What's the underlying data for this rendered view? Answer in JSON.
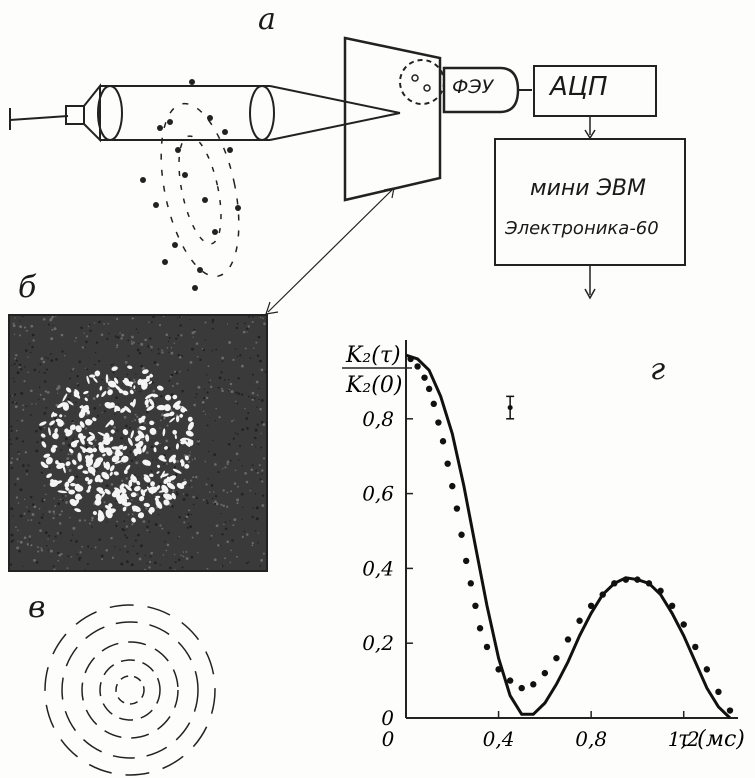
{
  "panels": {
    "a": "а",
    "b": "б",
    "v": "в",
    "g": "г"
  },
  "setup": {
    "pmt": "ФЭУ",
    "adc": "АЦП",
    "computer_line1": "мини ЭВМ",
    "computer_line2": "Электроника-60"
  },
  "chart_data": {
    "type": "line",
    "title": "",
    "ylabel_numerator": "K₂(τ)",
    "ylabel_denominator": "K₂(0)",
    "xlabel": "τ (мс)",
    "xlim": [
      0,
      1.4
    ],
    "ylim": [
      0,
      1.0
    ],
    "x_ticks": [
      "0",
      "0,4",
      "0,8",
      "1,2"
    ],
    "y_ticks": [
      "0",
      "0,2",
      "0,4",
      "0,6",
      "0,8"
    ],
    "y_tick_values": [
      0,
      0.2,
      0.4,
      0.6,
      0.8
    ],
    "x_tick_values": [
      0,
      0.4,
      0.8,
      1.2
    ],
    "series": [
      {
        "kind": "theory",
        "x": [
          0,
          0.05,
          0.1,
          0.15,
          0.2,
          0.25,
          0.3,
          0.35,
          0.4,
          0.45,
          0.5,
          0.55,
          0.6,
          0.65,
          0.7,
          0.75,
          0.8,
          0.85,
          0.9,
          0.95,
          1.0,
          1.05,
          1.1,
          1.15,
          1.2,
          1.25,
          1.3,
          1.35,
          1.4
        ],
        "values": [
          0.97,
          0.96,
          0.93,
          0.86,
          0.76,
          0.62,
          0.46,
          0.3,
          0.16,
          0.06,
          0.01,
          0.01,
          0.04,
          0.09,
          0.15,
          0.22,
          0.28,
          0.33,
          0.36,
          0.375,
          0.37,
          0.36,
          0.33,
          0.28,
          0.22,
          0.15,
          0.08,
          0.03,
          0.0
        ]
      },
      {
        "kind": "experiment",
        "x": [
          0.02,
          0.05,
          0.08,
          0.1,
          0.12,
          0.14,
          0.16,
          0.18,
          0.2,
          0.22,
          0.24,
          0.26,
          0.28,
          0.3,
          0.32,
          0.35,
          0.4,
          0.45,
          0.5,
          0.55,
          0.6,
          0.65,
          0.7,
          0.75,
          0.8,
          0.85,
          0.9,
          0.95,
          1.0,
          1.05,
          1.1,
          1.15,
          1.2,
          1.25,
          1.3,
          1.35,
          1.4
        ],
        "values": [
          0.96,
          0.94,
          0.91,
          0.88,
          0.84,
          0.79,
          0.74,
          0.68,
          0.62,
          0.56,
          0.49,
          0.42,
          0.36,
          0.3,
          0.24,
          0.19,
          0.13,
          0.1,
          0.08,
          0.09,
          0.12,
          0.16,
          0.21,
          0.26,
          0.3,
          0.33,
          0.36,
          0.37,
          0.37,
          0.36,
          0.34,
          0.3,
          0.25,
          0.19,
          0.13,
          0.07,
          0.02
        ]
      }
    ],
    "error_bar": {
      "x": 0.45,
      "y": 0.83,
      "dy": 0.03
    }
  }
}
